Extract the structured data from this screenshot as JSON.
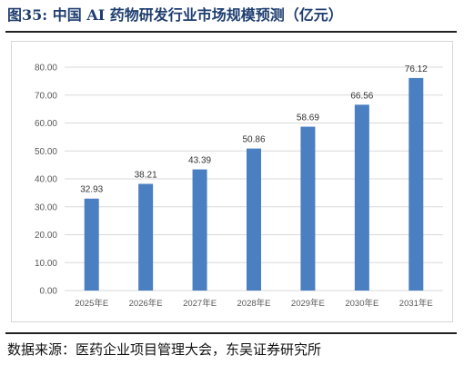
{
  "figure": {
    "title": "图35:  中国 AI 药物研发行业市场规模预测（亿元）",
    "source": "数据来源：医药企业项目管理大会，东吴证券研究所"
  },
  "colors": {
    "bar": "#4a7fc1",
    "title": "#1f3e70",
    "gridline": "#d9d9d9",
    "axis_text": "#595959"
  },
  "chart_data": {
    "type": "bar",
    "categories": [
      "2025年E",
      "2026年E",
      "2027年E",
      "2028年E",
      "2029年E",
      "2030年E",
      "2031年E"
    ],
    "values": [
      32.93,
      38.21,
      43.39,
      50.86,
      58.69,
      66.56,
      76.12
    ],
    "data_labels": [
      "32.93",
      "38.21",
      "43.39",
      "50.86",
      "58.69",
      "66.56",
      "76.12"
    ],
    "ylim": [
      0,
      80
    ],
    "yticks": [
      "0.00",
      "10.00",
      "20.00",
      "30.00",
      "40.00",
      "50.00",
      "60.00",
      "70.00",
      "80.00"
    ],
    "grid": true,
    "legend": "none"
  }
}
